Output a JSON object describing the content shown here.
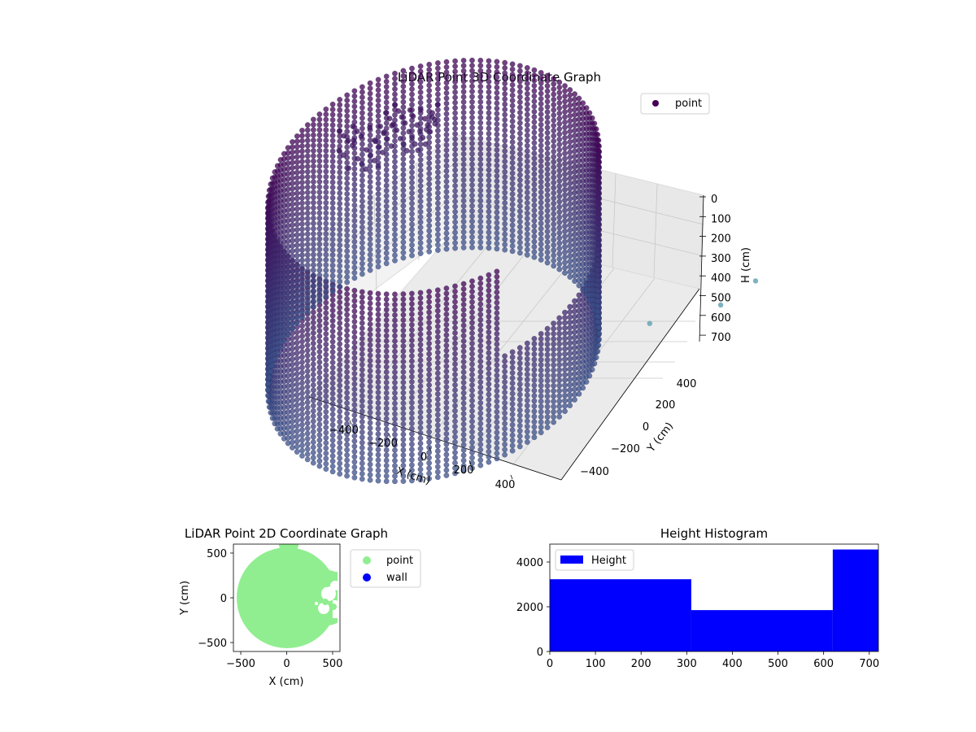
{
  "chart_data": [
    {
      "type": "scatter3d",
      "title": "LiDAR Point 3D Coordinate Graph",
      "xlabel": "X (cm)",
      "ylabel": "Y (cm)",
      "zlabel": "H (cm)",
      "xticks": [
        "−400",
        "−200",
        "0",
        "200",
        "400"
      ],
      "yticks": [
        "−400",
        "−200",
        "0",
        "200",
        "400"
      ],
      "zticks": [
        "0",
        "100",
        "200",
        "300",
        "400",
        "500",
        "600",
        "700"
      ],
      "xlim": [
        -550,
        550
      ],
      "ylim": [
        -550,
        550
      ],
      "zlim": [
        0,
        720
      ],
      "z_inverted": true,
      "legend": {
        "labels": [
          "point"
        ],
        "placement": "top-right"
      },
      "colors": {
        "top": "#440154",
        "bottom": "#3b528b",
        "outlier": "#5e9fb0"
      },
      "grid": true,
      "description": "Cylindrical wall of points, radius about 480 cm, heights 0 to 700 cm, with a dense cluster near the top on the far wall"
    },
    {
      "type": "scatter",
      "title": "LiDAR Point 2D Coordinate Graph",
      "xlabel": "X (cm)",
      "ylabel": "Y (cm)",
      "xticks": [
        "−500",
        "0",
        "500"
      ],
      "yticks": [
        "−500",
        "0",
        "500"
      ],
      "xlim": [
        -580,
        580
      ],
      "ylim": [
        -600,
        600
      ],
      "series": [
        {
          "name": "point",
          "color": "#90ee90"
        },
        {
          "name": "wall",
          "color": "#0000ff"
        }
      ],
      "legend": {
        "placement": "outside-right"
      }
    },
    {
      "type": "bar",
      "title": "Height Histogram",
      "bins": [
        [
          0,
          310
        ],
        [
          310,
          620
        ],
        [
          620,
          720
        ]
      ],
      "values": [
        3230,
        1850,
        4560
      ],
      "xticks": [
        "0",
        "100",
        "200",
        "300",
        "400",
        "500",
        "600",
        "700"
      ],
      "yticks": [
        "0",
        "2000",
        "4000"
      ],
      "xlim": [
        0,
        720
      ],
      "ylim": [
        0,
        4800
      ],
      "color": "#0000ff",
      "legend": {
        "labels": [
          "Height"
        ],
        "placement": "top-left"
      }
    }
  ]
}
